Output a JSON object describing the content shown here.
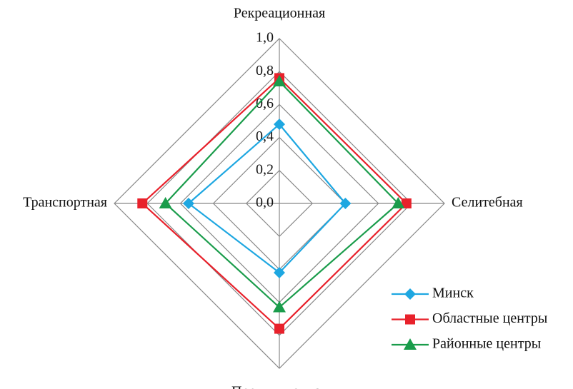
{
  "chart_data": {
    "type": "radar",
    "categories": [
      "Рекреационная",
      "Селитебная",
      "Промышленная",
      "Транспортная"
    ],
    "series": [
      {
        "name": "Минск",
        "color": "#1ea7e1",
        "marker": "diamond",
        "values": [
          0.48,
          0.4,
          0.42,
          0.55
        ]
      },
      {
        "name": "Областные центры",
        "color": "#e8212b",
        "marker": "square",
        "values": [
          0.76,
          0.77,
          0.76,
          0.83
        ]
      },
      {
        "name": "Районные центры",
        "color": "#1a9c4b",
        "marker": "triangle",
        "values": [
          0.74,
          0.72,
          0.63,
          0.69
        ]
      }
    ],
    "ylim": [
      0,
      1
    ],
    "yticks": [
      {
        "value": 0,
        "label": "0,0"
      },
      {
        "value": 0.2,
        "label": "0,2"
      },
      {
        "value": 0.4,
        "label": "0,4"
      },
      {
        "value": 0.6,
        "label": "0,6"
      },
      {
        "value": 0.8,
        "label": "0,8"
      },
      {
        "value": 1,
        "label": "1,0"
      }
    ],
    "grid": true,
    "legend": "lower right"
  }
}
